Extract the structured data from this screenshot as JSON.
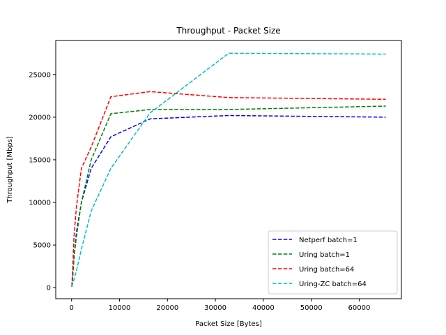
{
  "chart_data": {
    "type": "line",
    "title": "Throughput - Packet Size",
    "xlabel": "Packet Size [Bytes]",
    "ylabel": "Throughput [Mbps]",
    "xlim": [
      -3300,
      68800
    ],
    "ylim": [
      -1300,
      29000
    ],
    "xticks": [
      0,
      10000,
      20000,
      30000,
      40000,
      50000,
      60000
    ],
    "yticks": [
      0,
      5000,
      10000,
      15000,
      20000,
      25000
    ],
    "grid": false,
    "legend_position": "lower-right",
    "line_style": "dashed",
    "series": [
      {
        "name": "Netperf batch=1",
        "color": "#0000ff",
        "x": [
          64,
          256,
          512,
          1024,
          2048,
          4096,
          8192,
          16384,
          32768,
          65536
        ],
        "y": [
          100,
          1500,
          3500,
          6500,
          10000,
          14000,
          17700,
          19800,
          20200,
          20000
        ]
      },
      {
        "name": "Uring batch=1",
        "color": "#008000",
        "x": [
          64,
          256,
          512,
          1024,
          2048,
          4096,
          8192,
          16384,
          32768,
          65536
        ],
        "y": [
          100,
          1500,
          3500,
          6000,
          10000,
          15000,
          20400,
          20900,
          20900,
          21300
        ]
      },
      {
        "name": "Uring batch=64",
        "color": "#ff0000",
        "x": [
          64,
          256,
          512,
          1024,
          2048,
          4096,
          8192,
          16384,
          32768,
          65536
        ],
        "y": [
          200,
          2500,
          6000,
          9500,
          14000,
          16500,
          22400,
          23000,
          22300,
          22100
        ]
      },
      {
        "name": "Uring-ZC batch=64",
        "color": "#00bfbf",
        "x": [
          64,
          1024,
          2048,
          4096,
          8192,
          16384,
          32768,
          65536
        ],
        "y": [
          100,
          2000,
          4500,
          9000,
          14000,
          20500,
          27500,
          27400
        ]
      }
    ]
  }
}
